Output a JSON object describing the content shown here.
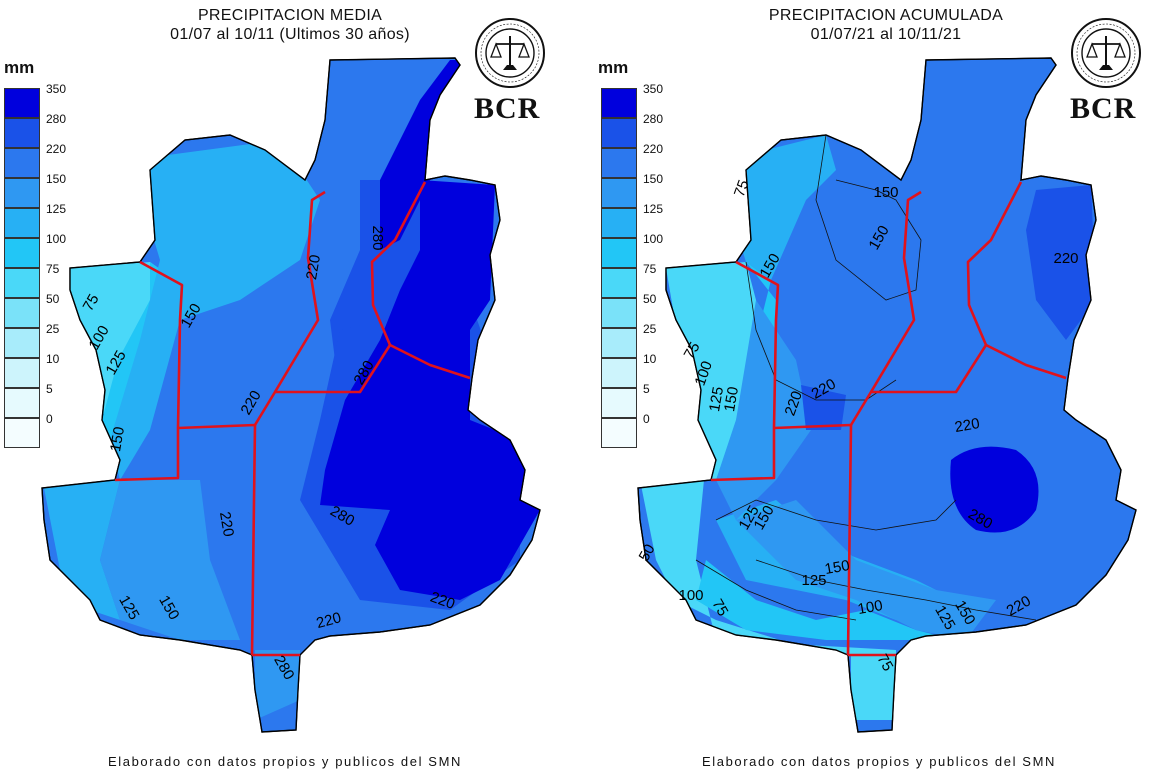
{
  "left_map": {
    "title_line1": "PRECIPITACION MEDIA",
    "title_line2": "01/07 al 10/11 (Ultimos 30 años)",
    "contour_labels": [
      "75",
      "100",
      "125",
      "150",
      "220",
      "280",
      "220",
      "280",
      "220",
      "280",
      "150",
      "125",
      "220",
      "150",
      "220",
      "280"
    ],
    "footer": "Elaborado con datos propios y publicos del SMN"
  },
  "right_map": {
    "title_line1": "PRECIPITACION ACUMULADA",
    "title_line2": "01/07/21 al 10/11/21",
    "contour_labels": [
      "75",
      "150",
      "150",
      "220",
      "150",
      "220",
      "75",
      "100",
      "125",
      "150",
      "220",
      "220",
      "220",
      "280",
      "125",
      "150",
      "150",
      "125",
      "100",
      "75",
      "100",
      "125",
      "150",
      "220",
      "75",
      "50"
    ],
    "footer": "Elaborado con datos propios y publicos del SMN"
  },
  "legend": {
    "unit": "mm",
    "ticks": [
      "350",
      "280",
      "220",
      "150",
      "125",
      "100",
      "75",
      "50",
      "25",
      "10",
      "5",
      "0"
    ],
    "colors": [
      "#0000dd",
      "#1a52e8",
      "#2c78ee",
      "#2f98f2",
      "#27b0f4",
      "#22c6f6",
      "#4ad8f8",
      "#7ae2f9",
      "#a8ecfb",
      "#cdf4fc",
      "#e6fafe",
      "#f4fdff"
    ]
  },
  "branding": {
    "logo_text": "BCR",
    "seal_text": "BOLSA DE COMERCIO DE ROSARIO"
  },
  "style_colors": {
    "boundary": "#e0121c",
    "c350": "#0000dd",
    "c280": "#1a52e8",
    "c220": "#2c78ee",
    "c150": "#2f98f2",
    "c125": "#27b0f4",
    "c100": "#22c6f6",
    "c75": "#4ad8f8",
    "c50": "#7ae2f9"
  }
}
